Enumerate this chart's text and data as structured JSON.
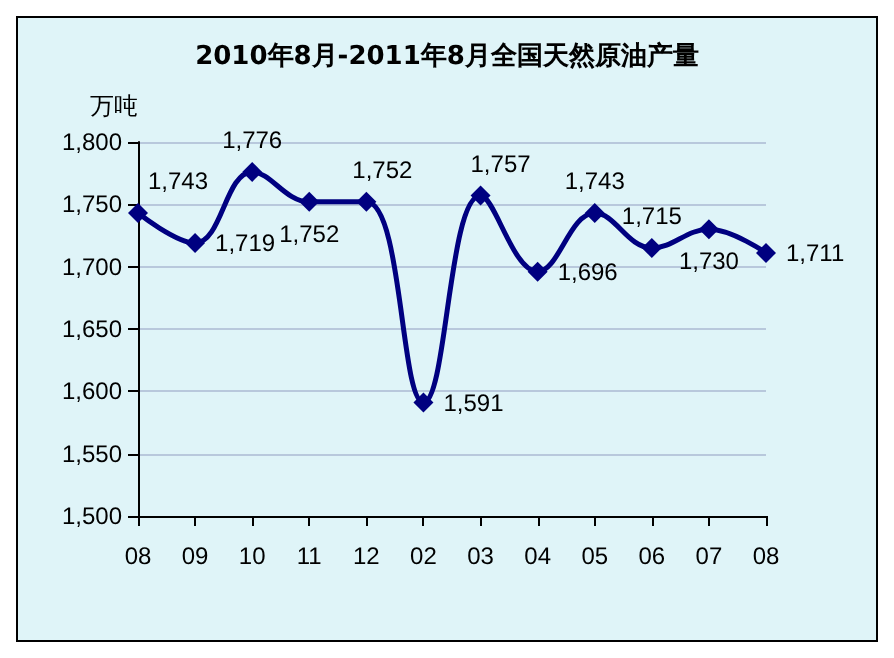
{
  "chart_data": {
    "type": "line",
    "title": "2010年8月-2011年8月全国天然原油产量",
    "ylabel": "万吨",
    "categories": [
      "08",
      "09",
      "10",
      "11",
      "12",
      "02",
      "03",
      "04",
      "05",
      "06",
      "07",
      "08"
    ],
    "series": [
      {
        "color": "#000080",
        "values": [
          1743,
          1719,
          1776,
          1752,
          1752,
          1591,
          1757,
          1696,
          1743,
          1715,
          1730,
          1711
        ]
      }
    ],
    "ylim": [
      1500,
      1800
    ],
    "yticks": [
      {
        "value": 1500,
        "label": "1,500"
      },
      {
        "value": 1550,
        "label": "1,550"
      },
      {
        "value": 1600,
        "label": "1,600"
      },
      {
        "value": 1650,
        "label": "1,650"
      },
      {
        "value": 1700,
        "label": "1,700"
      },
      {
        "value": 1750,
        "label": "1,750"
      },
      {
        "value": 1800,
        "label": "1,800"
      }
    ],
    "value_labels": [
      "1,743",
      "1,719",
      "1,776",
      "1,752",
      "1,752",
      "1,591",
      "1,757",
      "1,696",
      "1,743",
      "1,715",
      "1,730",
      "1,711"
    ],
    "grid": "y",
    "marker": "diamond",
    "line_style": "solid"
  }
}
